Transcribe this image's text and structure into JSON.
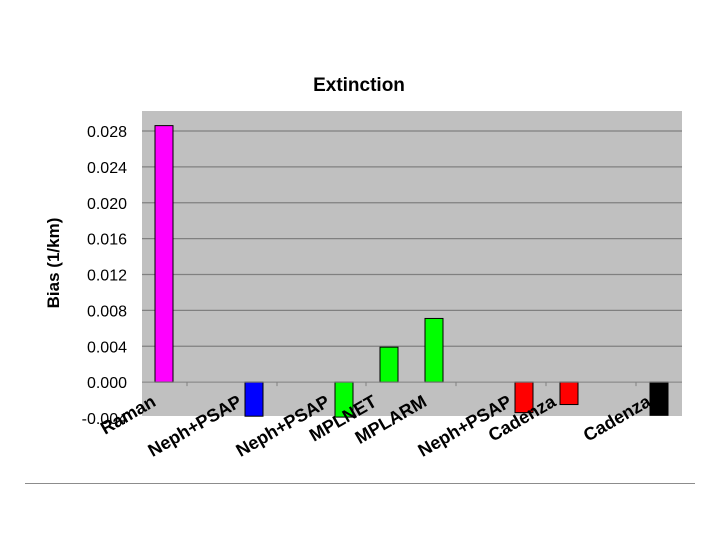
{
  "chart_data": {
    "type": "bar",
    "title": "Extinction",
    "xlabel": "",
    "ylabel": "Bias (1/km)",
    "ylim": [
      -0.004,
      0.028
    ],
    "yticks": [
      "0.028",
      "0.024",
      "0.020",
      "0.016",
      "0.012",
      "0.008",
      "0.004",
      "0.000",
      "-0.004"
    ],
    "grid": true,
    "categories": [
      "Raman",
      "Neph+PSAP",
      "Neph+PSAP",
      "MPLNET",
      "MPLARM",
      "Neph+PSAP",
      "Cadenza",
      "Cadenza"
    ],
    "values": [
      0.0286,
      -0.0038,
      -0.0039,
      0.0039,
      0.0071,
      -0.0034,
      -0.0025,
      -0.0037
    ],
    "colors": [
      "#ff00ff",
      "#0000ff",
      "#00ff00",
      "#00ff00",
      "#00ff00",
      "#ff0000",
      "#ff0000",
      "#000000"
    ]
  },
  "colors": {
    "plot_background": "#c0c0c0",
    "gridline": "#808080",
    "bar_outline": "#000000"
  }
}
